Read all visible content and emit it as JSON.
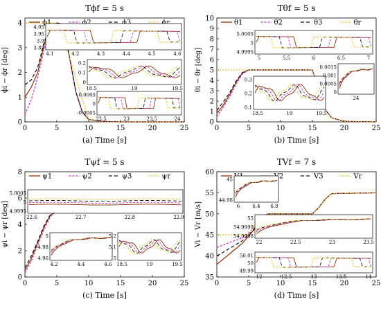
{
  "figure": {
    "legend_labels": {
      "a": [
        "ϕ1",
        "ϕ2",
        "ϕ3",
        "ϕr"
      ],
      "b": [
        "θ1",
        "θ2",
        "θ3",
        "θr"
      ],
      "c": [
        "ψ1",
        "ψ2",
        "ψ3",
        "ψr"
      ],
      "d": [
        "V1",
        "V2",
        "V3",
        "Vr"
      ]
    }
  },
  "colors": {
    "agent1": "#8c2d04",
    "agent2": "#cc33cc",
    "agent3": "#111111",
    "reference": "#e6b800"
  },
  "chart_data": [
    {
      "id": "a",
      "type": "line",
      "title": "Tϕf = 5 s",
      "xlabel": "(a) Time [s]",
      "ylabel": "ϕi − ϕr [deg]",
      "xlim": [
        0,
        25
      ],
      "ylim": [
        0,
        4.2
      ],
      "xticks": [
        0,
        5,
        10,
        15,
        20,
        25
      ],
      "yticks": [
        0,
        1,
        2,
        3,
        4
      ],
      "legend": "top, horizontal",
      "series": [
        {
          "name": "ϕ1",
          "x": [
            0,
            1,
            2,
            3,
            4,
            5,
            6,
            7,
            8,
            9,
            10,
            12,
            15,
            20,
            25
          ],
          "y": [
            1.0,
            1.4,
            2.0,
            3.1,
            3.9,
            4.0,
            3.95,
            2.6,
            1.2,
            0.4,
            0.1,
            0.02,
            0.0,
            0.0,
            0.0
          ]
        },
        {
          "name": "ϕ2",
          "x": [
            0,
            1,
            2,
            3,
            4,
            5,
            6,
            7,
            8,
            9,
            10,
            12,
            15,
            20,
            25
          ],
          "y": [
            0.3,
            0.9,
            1.8,
            2.9,
            3.85,
            4.0,
            3.95,
            2.6,
            1.2,
            0.4,
            0.1,
            0.02,
            0.0,
            0.0,
            0.0
          ]
        },
        {
          "name": "ϕ3",
          "x": [
            0,
            1,
            2,
            3,
            4,
            5,
            6,
            7,
            8,
            9,
            10,
            12,
            15,
            20,
            25
          ],
          "y": [
            1.5,
            1.7,
            2.2,
            3.2,
            3.92,
            4.0,
            3.95,
            2.6,
            1.2,
            0.4,
            0.1,
            0.02,
            0.0,
            0.0,
            0.0
          ]
        },
        {
          "name": "ϕr",
          "x": [
            0,
            5,
            7,
            10,
            12,
            25
          ],
          "y": [
            4.0,
            4.0,
            2.6,
            0.1,
            0.0,
            0.0
          ]
        }
      ],
      "insets": [
        {
          "xticks": [
            "4.1",
            "4.2",
            "4.3",
            "4.4",
            "4.5",
            "4.6"
          ],
          "yticks": [
            "4.05",
            "3.95",
            "3.9",
            "3.85"
          ]
        },
        {
          "xticks": [
            "18.5",
            "19",
            "19.5"
          ],
          "yticks": [
            "0.2",
            "0.1",
            "0"
          ]
        },
        {
          "xticks": [
            "22.5",
            "23",
            "23.5",
            "24"
          ],
          "yticks": [
            "0.0005",
            "0",
            "-0.0005"
          ]
        }
      ]
    },
    {
      "id": "b",
      "type": "line",
      "title": "Tθf = 5 s",
      "xlabel": "(b) Time [s]",
      "ylabel": "θi − θr [deg]",
      "xlim": [
        0,
        25
      ],
      "ylim": [
        0,
        10
      ],
      "xticks": [
        0,
        5,
        10,
        15,
        20,
        25
      ],
      "yticks": [
        0,
        1,
        2,
        3,
        4,
        5,
        6,
        7,
        8,
        9,
        10
      ],
      "legend": "top, horizontal",
      "series": [
        {
          "name": "θ1",
          "x": [
            0,
            1,
            2,
            3,
            4,
            5,
            10,
            15,
            16,
            17,
            18,
            20,
            25
          ],
          "y": [
            0.8,
            1.6,
            2.6,
            3.8,
            4.7,
            5.0,
            5.0,
            5.0,
            3.0,
            1.2,
            0.4,
            0.05,
            0.0
          ]
        },
        {
          "name": "θ2",
          "x": [
            0,
            1,
            2,
            3,
            4,
            5,
            10,
            15,
            16,
            17,
            18,
            20,
            25
          ],
          "y": [
            0.5,
            1.4,
            2.4,
            3.6,
            4.6,
            5.0,
            5.0,
            5.0,
            3.0,
            1.2,
            0.4,
            0.05,
            0.0
          ]
        },
        {
          "name": "θ3",
          "x": [
            0,
            1,
            2,
            3,
            4,
            5,
            10,
            15,
            16,
            17,
            18,
            20,
            25
          ],
          "y": [
            1.1,
            1.9,
            2.8,
            3.9,
            4.75,
            5.0,
            5.0,
            5.0,
            3.0,
            1.2,
            0.4,
            0.05,
            0.0
          ]
        },
        {
          "name": "θr",
          "x": [
            0,
            15,
            16,
            17,
            18,
            20,
            25
          ],
          "y": [
            5.0,
            5.0,
            3.0,
            1.2,
            0.4,
            0.05,
            0.0
          ]
        }
      ],
      "insets": [
        {
          "xticks": [
            "5",
            "5.5",
            "6",
            "6.5",
            "7"
          ],
          "yticks": [
            "5.0005",
            "5",
            "4.9995"
          ]
        },
        {
          "xticks": [
            "18.5",
            "19",
            "19.5"
          ],
          "yticks": [
            "0.3",
            "0.2",
            "0.1"
          ]
        },
        {
          "xticks": [
            "24"
          ],
          "yticks": [
            "0.0015",
            "0.001",
            "0.0005",
            "0"
          ]
        }
      ]
    },
    {
      "id": "c",
      "type": "line",
      "title": "Tψf = 5 s",
      "xlabel": "(c) Time [s]",
      "ylabel": "ψi − ψr [deg]",
      "xlim": [
        0,
        25
      ],
      "ylim": [
        0,
        8
      ],
      "xticks": [
        0,
        5,
        10,
        15,
        20,
        25
      ],
      "yticks": [
        0,
        2,
        4,
        6,
        8
      ],
      "legend": "top, horizontal",
      "series": [
        {
          "name": "ψ1",
          "x": [
            0,
            1,
            2,
            3,
            4,
            5,
            25
          ],
          "y": [
            0.5,
            1.4,
            2.6,
            3.8,
            4.7,
            5.0,
            5.0
          ]
        },
        {
          "name": "ψ2",
          "x": [
            0,
            1,
            2,
            3,
            4,
            5,
            25
          ],
          "y": [
            0.3,
            1.2,
            2.4,
            3.6,
            4.6,
            5.0,
            5.0
          ]
        },
        {
          "name": "ψ3",
          "x": [
            0,
            1,
            2,
            3,
            4,
            5,
            25
          ],
          "y": [
            0.7,
            1.6,
            2.7,
            3.9,
            4.75,
            5.0,
            5.0
          ]
        },
        {
          "name": "ψr",
          "x": [
            0,
            25
          ],
          "y": [
            5.0,
            5.0
          ]
        }
      ],
      "insets": [
        {
          "xticks": [
            "22.6",
            "22.7",
            "22.8",
            "22.9"
          ],
          "yticks": [
            "5.0005",
            "5",
            "4.9995"
          ]
        },
        {
          "xticks": [
            "4.2",
            "4.4",
            "4.6"
          ],
          "yticks": [
            "5",
            "4.98",
            "4.96"
          ]
        },
        {
          "xticks": [
            "18.5",
            "19",
            "19.5"
          ],
          "yticks": [
            "5.2",
            "5.1",
            "5"
          ]
        }
      ]
    },
    {
      "id": "d",
      "type": "line",
      "title": "TVf = 7 s",
      "xlabel": "(d) Time [s]",
      "ylabel": "Vi − Vr [m/s]",
      "xlim": [
        0,
        25
      ],
      "ylim": [
        35,
        60
      ],
      "xticks": [
        0,
        5,
        10,
        15,
        20,
        25
      ],
      "yticks": [
        35,
        40,
        45,
        50,
        55,
        60
      ],
      "legend": "top, horizontal",
      "series": [
        {
          "name": "V1",
          "x": [
            0,
            2,
            4,
            6,
            7,
            8,
            15,
            16,
            17,
            18,
            25
          ],
          "y": [
            38.0,
            40.5,
            43.0,
            46.5,
            49.0,
            50.0,
            50.0,
            51.5,
            53.5,
            54.8,
            55.0
          ]
        },
        {
          "name": "V2",
          "x": [
            0,
            2,
            4,
            6,
            7,
            8,
            15,
            16,
            17,
            18,
            25
          ],
          "y": [
            42.0,
            43.2,
            44.3,
            46.8,
            49.0,
            50.0,
            50.0,
            51.5,
            53.5,
            54.8,
            55.0
          ]
        },
        {
          "name": "V3",
          "x": [
            0,
            2,
            4,
            6,
            7,
            8,
            15,
            16,
            17,
            18,
            25
          ],
          "y": [
            40.0,
            41.8,
            43.6,
            46.6,
            49.0,
            50.0,
            50.0,
            51.5,
            53.5,
            54.8,
            55.0
          ]
        },
        {
          "name": "Vr",
          "x": [
            0,
            5,
            6,
            7,
            8,
            15,
            16,
            17,
            18,
            25
          ],
          "y": [
            45.0,
            45.0,
            47.5,
            49.5,
            50.0,
            50.0,
            51.5,
            53.5,
            54.8,
            55.0
          ]
        }
      ],
      "insets": [
        {
          "xticks": [
            "6",
            "6.4",
            "6.8"
          ],
          "yticks": [
            "45",
            "44.98"
          ]
        },
        {
          "xticks": [
            "22",
            "22.5",
            "23",
            "23.5"
          ],
          "yticks": [
            "55",
            "54.9999",
            "54.9998"
          ]
        },
        {
          "xticks": [
            "12",
            "12.5",
            "13",
            "13.5",
            "14"
          ],
          "yticks": [
            "50.01",
            "50",
            "49.99"
          ]
        }
      ]
    }
  ]
}
